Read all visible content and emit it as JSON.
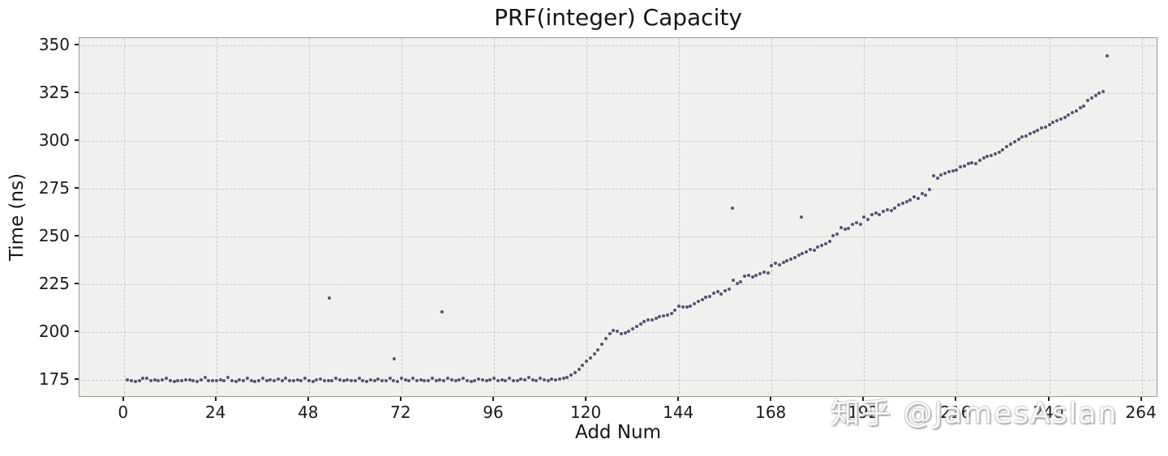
{
  "figure": {
    "watermark": "知乎 @JamesAslan",
    "colors": {
      "figure_bg": "#ffffff",
      "plot_bg": "#f0f0ef",
      "gridline": "#c7c7c7",
      "point": "#3e3e63",
      "spine": "#9a9a9a",
      "text": "#151515",
      "watermark": "#cfcfcf"
    }
  },
  "chart_data": {
    "type": "scatter",
    "title": "PRF(integer) Capacity",
    "xlabel": "Add Num",
    "ylabel": "Time (ns)",
    "xlim": [
      -11.5,
      268.3
    ],
    "ylim": [
      165.5,
      353.8
    ],
    "x_ticks": [
      0,
      24,
      48,
      72,
      96,
      120,
      144,
      168,
      192,
      216,
      240,
      264
    ],
    "y_ticks": [
      175,
      200,
      225,
      250,
      275,
      300,
      325,
      350
    ],
    "grid": "dashed",
    "legend": null,
    "series": [
      {
        "name": "time_ns",
        "points": [
          [
            1,
            175.0
          ],
          [
            2,
            174.4
          ],
          [
            3,
            174.1
          ],
          [
            4,
            174.6
          ],
          [
            5,
            175.9
          ],
          [
            6,
            175.5
          ],
          [
            7,
            174.5
          ],
          [
            8,
            174.9
          ],
          [
            9,
            174.3
          ],
          [
            10,
            174.7
          ],
          [
            11,
            175.8
          ],
          [
            12,
            174.5
          ],
          [
            13,
            174.2
          ],
          [
            14,
            174.6
          ],
          [
            15,
            174.3
          ],
          [
            16,
            174.8
          ],
          [
            17,
            175.0
          ],
          [
            18,
            174.4
          ],
          [
            19,
            174.2
          ],
          [
            20,
            174.7
          ],
          [
            21,
            176.1
          ],
          [
            22,
            174.6
          ],
          [
            23,
            174.3
          ],
          [
            24,
            174.5
          ],
          [
            25,
            174.9
          ],
          [
            26,
            174.3
          ],
          [
            27,
            176.0
          ],
          [
            28,
            174.6
          ],
          [
            29,
            174.2
          ],
          [
            30,
            174.8
          ],
          [
            31,
            174.4
          ],
          [
            32,
            175.7
          ],
          [
            33,
            174.5
          ],
          [
            34,
            174.2
          ],
          [
            35,
            174.6
          ],
          [
            36,
            175.9
          ],
          [
            37,
            174.4
          ],
          [
            38,
            174.7
          ],
          [
            39,
            174.3
          ],
          [
            40,
            175.1
          ],
          [
            41,
            174.5
          ],
          [
            42,
            175.8
          ],
          [
            43,
            174.6
          ],
          [
            44,
            174.3
          ],
          [
            45,
            174.8
          ],
          [
            46,
            174.4
          ],
          [
            47,
            175.6
          ],
          [
            48,
            174.5
          ],
          [
            49,
            174.2
          ],
          [
            50,
            174.7
          ],
          [
            51,
            175.3
          ],
          [
            52,
            174.4
          ],
          [
            53,
            174.6
          ],
          [
            54,
            174.3
          ],
          [
            55,
            175.7
          ],
          [
            56,
            174.8
          ],
          [
            57,
            174.4
          ],
          [
            58,
            174.9
          ],
          [
            59,
            174.3
          ],
          [
            60,
            174.6
          ],
          [
            61,
            175.9
          ],
          [
            62,
            174.5
          ],
          [
            63,
            174.2
          ],
          [
            64,
            174.7
          ],
          [
            65,
            174.4
          ],
          [
            66,
            175.2
          ],
          [
            67,
            174.6
          ],
          [
            68,
            174.3
          ],
          [
            69,
            175.8
          ],
          [
            70,
            174.5
          ],
          [
            71,
            174.2
          ],
          [
            72,
            175.5
          ],
          [
            73,
            175.0
          ],
          [
            74,
            174.6
          ],
          [
            75,
            175.8
          ],
          [
            76,
            174.4
          ],
          [
            77,
            174.8
          ],
          [
            78,
            174.3
          ],
          [
            79,
            174.6
          ],
          [
            80,
            175.7
          ],
          [
            81,
            174.5
          ],
          [
            82,
            174.9
          ],
          [
            83,
            174.4
          ],
          [
            84,
            175.6
          ],
          [
            85,
            174.7
          ],
          [
            86,
            174.3
          ],
          [
            87,
            174.8
          ],
          [
            88,
            175.9
          ],
          [
            89,
            174.5
          ],
          [
            90,
            174.2
          ],
          [
            91,
            174.6
          ],
          [
            92,
            175.4
          ],
          [
            93,
            174.8
          ],
          [
            94,
            174.3
          ],
          [
            95,
            174.7
          ],
          [
            96,
            175.6
          ],
          [
            97,
            174.4
          ],
          [
            98,
            174.9
          ],
          [
            99,
            174.5
          ],
          [
            100,
            175.8
          ],
          [
            101,
            174.6
          ],
          [
            102,
            174.3
          ],
          [
            103,
            175.2
          ],
          [
            104,
            174.7
          ],
          [
            105,
            176.2
          ],
          [
            106,
            175.0
          ],
          [
            107,
            174.5
          ],
          [
            108,
            175.5
          ],
          [
            109,
            174.8
          ],
          [
            110,
            174.4
          ],
          [
            111,
            175.3
          ],
          [
            112,
            174.9
          ],
          [
            113,
            175.1
          ],
          [
            114,
            175.6
          ],
          [
            115,
            176.3
          ],
          [
            116,
            177.2
          ],
          [
            117,
            178.5
          ],
          [
            118,
            180.2
          ],
          [
            119,
            182.4
          ],
          [
            120,
            184.6
          ],
          [
            121,
            186.4
          ],
          [
            122,
            188.3
          ],
          [
            123,
            190.6
          ],
          [
            124,
            193.4
          ],
          [
            125,
            196.5
          ],
          [
            126,
            199.2
          ],
          [
            127,
            200.6
          ],
          [
            128,
            200.1
          ],
          [
            129,
            198.9
          ],
          [
            130,
            199.6
          ],
          [
            131,
            200.3
          ],
          [
            132,
            201.5
          ],
          [
            133,
            202.8
          ],
          [
            134,
            204.3
          ],
          [
            135,
            205.4
          ],
          [
            136,
            206.3
          ],
          [
            137,
            206.1
          ],
          [
            138,
            207.2
          ],
          [
            139,
            207.9
          ],
          [
            140,
            208.4
          ],
          [
            141,
            208.9
          ],
          [
            142,
            209.8
          ],
          [
            143,
            211.3
          ],
          [
            144,
            213.5
          ],
          [
            145,
            213.2
          ],
          [
            146,
            212.9
          ],
          [
            147,
            213.6
          ],
          [
            148,
            214.7
          ],
          [
            149,
            215.8
          ],
          [
            150,
            216.8
          ],
          [
            151,
            217.9
          ],
          [
            152,
            218.7
          ],
          [
            153,
            220.2
          ],
          [
            154,
            220.9
          ],
          [
            155,
            219.9
          ],
          [
            156,
            221.7
          ],
          [
            157,
            222.3
          ],
          [
            158,
            226.9
          ],
          [
            159,
            225.2
          ],
          [
            160,
            226.1
          ],
          [
            161,
            229.0
          ],
          [
            162,
            229.7
          ],
          [
            163,
            228.8
          ],
          [
            164,
            229.5
          ],
          [
            165,
            230.4
          ],
          [
            166,
            231.3
          ],
          [
            167,
            230.9
          ],
          [
            168,
            234.6
          ],
          [
            169,
            235.8
          ],
          [
            170,
            235.1
          ],
          [
            171,
            236.4
          ],
          [
            172,
            237.2
          ],
          [
            173,
            238.0
          ],
          [
            174,
            239.1
          ],
          [
            175,
            240.3
          ],
          [
            176,
            241.0
          ],
          [
            177,
            241.8
          ],
          [
            178,
            243.1
          ],
          [
            179,
            242.6
          ],
          [
            180,
            244.2
          ],
          [
            181,
            245.3
          ],
          [
            182,
            246.1
          ],
          [
            183,
            247.4
          ],
          [
            184,
            250.5
          ],
          [
            185,
            251.0
          ],
          [
            186,
            254.4
          ],
          [
            187,
            253.6
          ],
          [
            188,
            254.1
          ],
          [
            189,
            256.1
          ],
          [
            190,
            257.0
          ],
          [
            191,
            256.2
          ],
          [
            192,
            260.1
          ],
          [
            193,
            258.8
          ],
          [
            194,
            261.5
          ],
          [
            195,
            262.3
          ],
          [
            196,
            261.3
          ],
          [
            197,
            263.0
          ],
          [
            198,
            264.1
          ],
          [
            199,
            263.7
          ],
          [
            200,
            264.7
          ],
          [
            201,
            266.4
          ],
          [
            202,
            267.5
          ],
          [
            203,
            268.2
          ],
          [
            204,
            268.9
          ],
          [
            205,
            270.6
          ],
          [
            206,
            270.0
          ],
          [
            207,
            272.5
          ],
          [
            208,
            271.7
          ],
          [
            209,
            274.6
          ],
          [
            210,
            281.8
          ],
          [
            211,
            280.3
          ],
          [
            212,
            282.2
          ],
          [
            213,
            283.2
          ],
          [
            214,
            284.0
          ],
          [
            215,
            284.3
          ],
          [
            216,
            284.9
          ],
          [
            217,
            286.2
          ],
          [
            218,
            287.0
          ],
          [
            219,
            288.0
          ],
          [
            220,
            288.6
          ],
          [
            221,
            288.1
          ],
          [
            222,
            289.7
          ],
          [
            223,
            290.9
          ],
          [
            224,
            291.8
          ],
          [
            225,
            292.5
          ],
          [
            226,
            293.3
          ],
          [
            227,
            294.2
          ],
          [
            228,
            295.4
          ],
          [
            229,
            296.8
          ],
          [
            230,
            298.2
          ],
          [
            231,
            299.6
          ],
          [
            232,
            300.8
          ],
          [
            233,
            301.9
          ],
          [
            234,
            302.7
          ],
          [
            235,
            303.6
          ],
          [
            236,
            304.8
          ],
          [
            237,
            305.5
          ],
          [
            238,
            306.6
          ],
          [
            239,
            307.2
          ],
          [
            240,
            308.4
          ],
          [
            241,
            309.6
          ],
          [
            242,
            310.4
          ],
          [
            243,
            311.3
          ],
          [
            244,
            312.2
          ],
          [
            245,
            313.4
          ],
          [
            246,
            314.6
          ],
          [
            247,
            315.8
          ],
          [
            248,
            317.2
          ],
          [
            249,
            318.4
          ],
          [
            250,
            321.0
          ],
          [
            251,
            322.3
          ],
          [
            252,
            323.6
          ],
          [
            253,
            324.8
          ],
          [
            254,
            326.0
          ],
          [
            53.3,
            217.5
          ],
          [
            70.2,
            186.0
          ],
          [
            82.5,
            210.3
          ],
          [
            157.8,
            264.8
          ],
          [
            175.8,
            260.2
          ],
          [
            255,
            344.5
          ]
        ]
      }
    ]
  }
}
